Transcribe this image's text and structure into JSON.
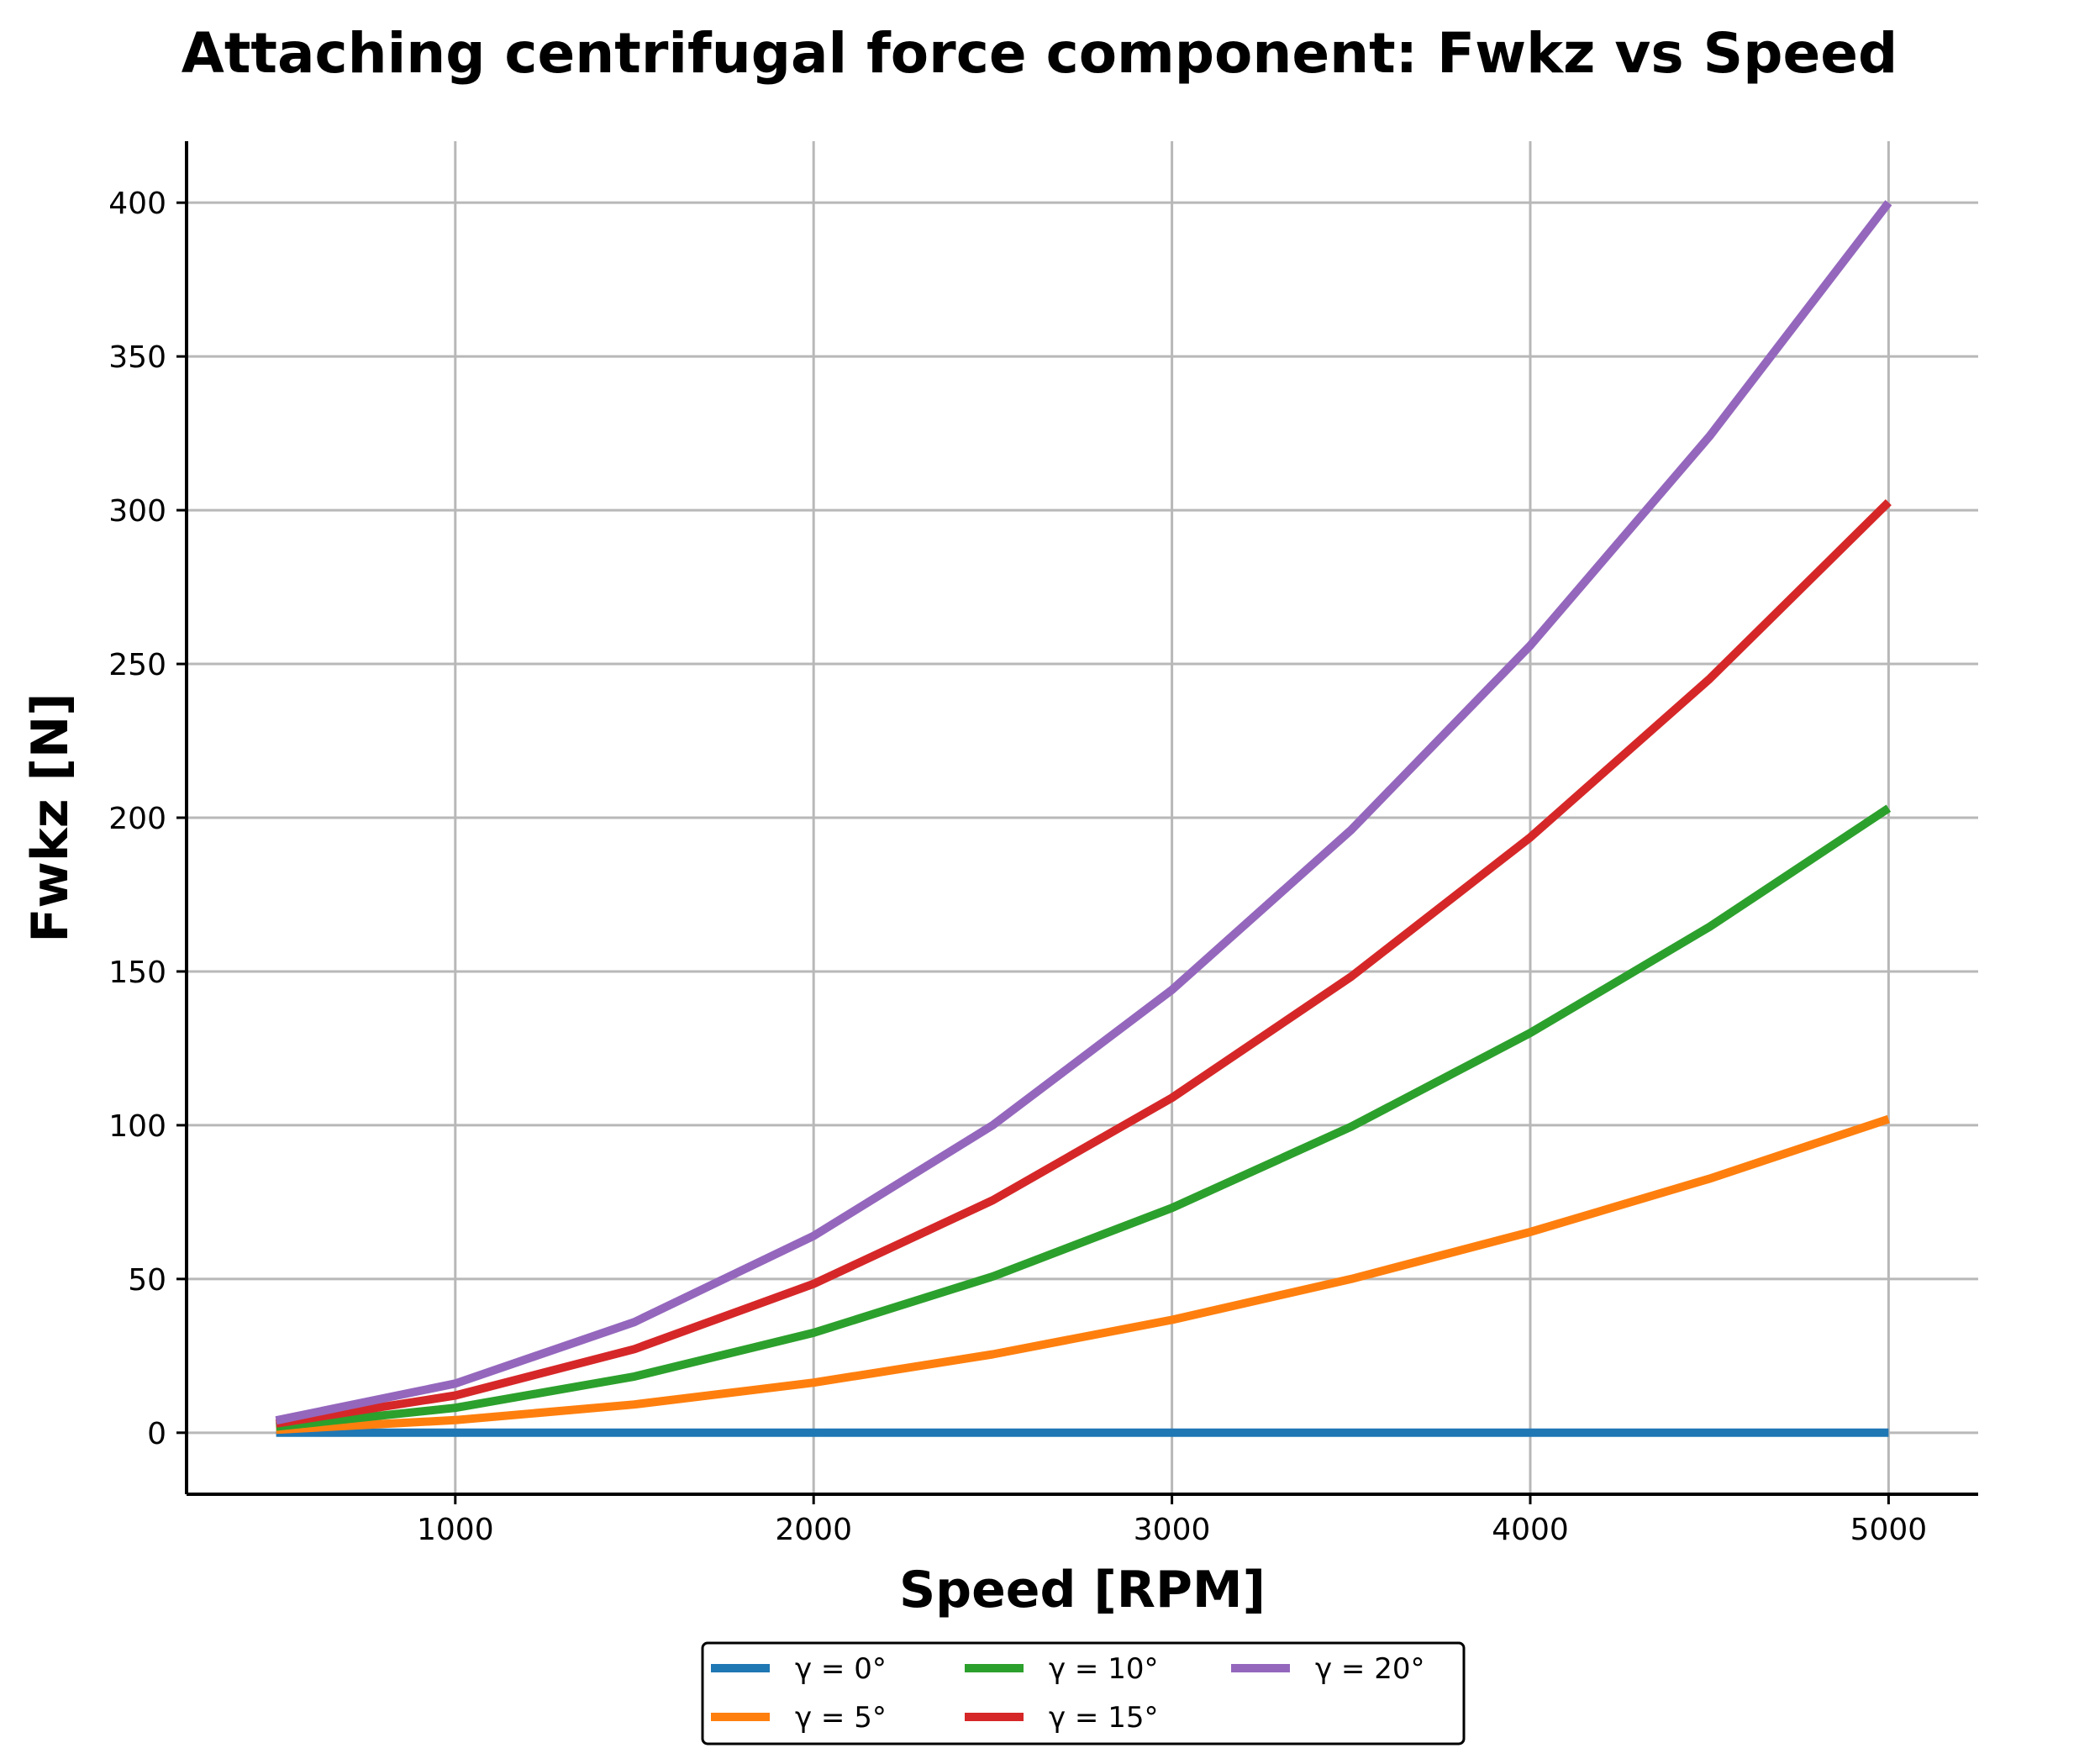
{
  "chart_data": {
    "type": "line",
    "title": "Attaching centrifugal force component: Fwkz vs Speed",
    "xlabel": "Speed [RPM]",
    "ylabel": "Fwkz [N]",
    "xlim": [
      250,
      5250
    ],
    "ylim": [
      -20,
      420
    ],
    "xticks": [
      1000,
      2000,
      3000,
      4000,
      5000
    ],
    "yticks": [
      0,
      50,
      100,
      150,
      200,
      250,
      300,
      350,
      400
    ],
    "grid": true,
    "legend_position": "bottom-center",
    "x": [
      500,
      1000,
      1500,
      2000,
      2500,
      3000,
      3500,
      4000,
      4500,
      5000
    ],
    "series": [
      {
        "name": "γ = 0°",
        "color": "#1f77b4",
        "values": [
          0,
          0,
          0,
          0,
          0,
          0,
          0,
          0,
          0,
          0
        ]
      },
      {
        "name": "γ = 5°",
        "color": "#ff7f0e",
        "values": [
          1.0,
          4.1,
          9.2,
          16.3,
          25.5,
          36.7,
          50.0,
          65.3,
          82.6,
          102.0
        ]
      },
      {
        "name": "γ = 10°",
        "color": "#2ca02c",
        "values": [
          2.0,
          8.1,
          18.3,
          32.5,
          50.8,
          73.1,
          99.5,
          130.0,
          164.5,
          203.1
        ]
      },
      {
        "name": "γ = 15°",
        "color": "#d62728",
        "values": [
          3.0,
          12.1,
          27.2,
          48.4,
          75.6,
          108.9,
          148.3,
          193.6,
          245.1,
          302.6
        ]
      },
      {
        "name": "γ = 20°",
        "color": "#9467bd",
        "values": [
          4.0,
          16.0,
          36.0,
          64.0,
          100.0,
          144.0,
          196.0,
          256.0,
          324.0,
          400.0
        ]
      }
    ]
  }
}
